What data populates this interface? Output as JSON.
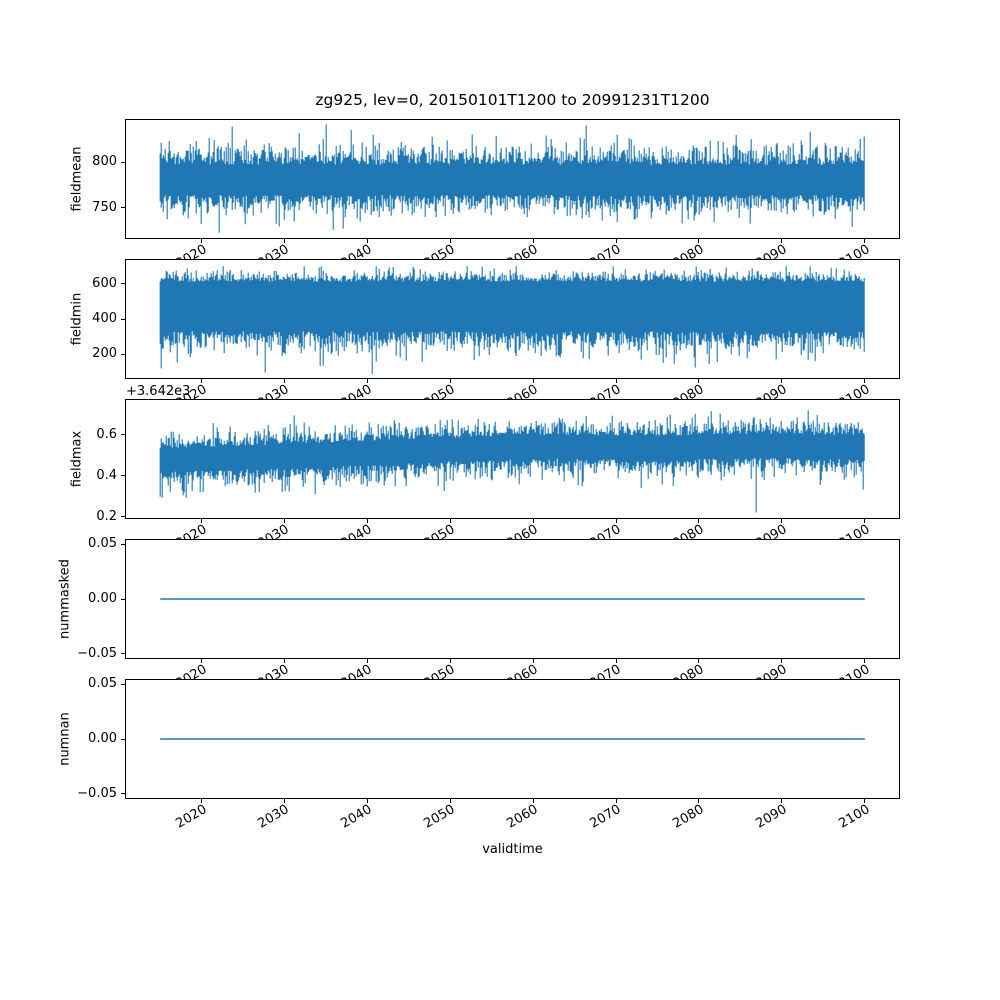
{
  "chart_data": {
    "type": "line",
    "title": "zg925, lev=0, 20150101T1200 to 20991231T1200",
    "xlabel": "validtime",
    "grid": false,
    "legend": null,
    "x_range": [
      2015.0,
      2100.0
    ],
    "xlim": [
      2010.75,
      2104.25
    ],
    "xticks": [
      2020,
      2030,
      2040,
      2050,
      2060,
      2070,
      2080,
      2090,
      2100
    ],
    "xtick_labels": [
      "2020",
      "2030",
      "2040",
      "2050",
      "2060",
      "2070",
      "2080",
      "2090",
      "2100"
    ],
    "xtick_rotation_deg": 30,
    "colors": {
      "line": "#1f77b4",
      "text": "#000000",
      "spine": "#000000",
      "background": "#ffffff"
    },
    "subplots": [
      {
        "ylabel": "fieldmean",
        "yticks": [
          750,
          800
        ],
        "ytick_labels": [
          "750",
          "800"
        ],
        "ylim": [
          716,
          847
        ],
        "series": {
          "kind": "envelope",
          "description": "dense daily noise band, core ~763-797, extremes ~723-841, single tall spike ~840 near 2067",
          "seed": 11,
          "base_top": 797,
          "base_bot": 764,
          "sigma_top": 11,
          "sigma_bot": 11,
          "spike_p": 0.1,
          "spike_mean_up": 8,
          "spike_mean_dn": 8,
          "max": 841,
          "min": 723,
          "forced_spikes": [
            {
              "frac": 0.605,
              "value": 840
            }
          ]
        }
      },
      {
        "ylabel": "fieldmin",
        "yticks": [
          200,
          400,
          600
        ],
        "ytick_labels": [
          "200",
          "400",
          "600"
        ],
        "ylim": [
          59,
          741
        ],
        "series": {
          "kind": "envelope",
          "description": "dense daily noise band, top envelope ~600-700, ragged bottom with deep spikes down to ~90",
          "seed": 22,
          "base_top": 612,
          "base_bot": 330,
          "sigma_top": 30,
          "sigma_bot": 60,
          "spike_p": 0.15,
          "spike_mean_up": 15,
          "spike_mean_dn": 45,
          "max": 700,
          "min": 88,
          "forced_spikes": []
        }
      },
      {
        "ylabel": "fieldmax",
        "offset_text": "+3.642e3",
        "value_offset": 3642,
        "yticks": [
          0.2,
          0.4,
          0.6
        ],
        "ytick_labels": [
          "0.2",
          "0.4",
          "0.6"
        ],
        "ylim": [
          0.19,
          0.775
        ],
        "series": {
          "kind": "envelope",
          "description": "dense daily noise band around 3642.5 (shown minus offset 3.642e3), slight upward drift, extremes ~0.22-0.74",
          "seed": 33,
          "center_trend": [
            [
              0,
              0.485
            ],
            [
              0.2,
              0.505
            ],
            [
              0.4,
              0.535
            ],
            [
              0.55,
              0.55
            ],
            [
              0.7,
              0.545
            ],
            [
              0.85,
              0.555
            ],
            [
              1,
              0.545
            ]
          ],
          "half_top": 0.05,
          "half_bot": 0.065,
          "sigma_top": 0.035,
          "sigma_bot": 0.045,
          "spike_p": 0.13,
          "spike_mean_up": 0.025,
          "spike_mean_dn": 0.035,
          "max": 0.745,
          "min": 0.222,
          "forced_spikes": []
        }
      },
      {
        "ylabel": "nummasked",
        "yticks": [
          -0.05,
          0.0,
          0.05
        ],
        "ytick_labels": [
          "−0.05",
          "0.00",
          "0.05"
        ],
        "ylim": [
          -0.055,
          0.055
        ],
        "series": {
          "kind": "constant",
          "value": 0.0,
          "description": "flat line at 0 for all valid times"
        }
      },
      {
        "ylabel": "numnan",
        "yticks": [
          -0.05,
          0.0,
          0.05
        ],
        "ytick_labels": [
          "−0.05",
          "0.00",
          "0.05"
        ],
        "ylim": [
          -0.055,
          0.055
        ],
        "series": {
          "kind": "constant",
          "value": 0.0,
          "description": "flat line at 0 for all valid times"
        }
      }
    ]
  }
}
